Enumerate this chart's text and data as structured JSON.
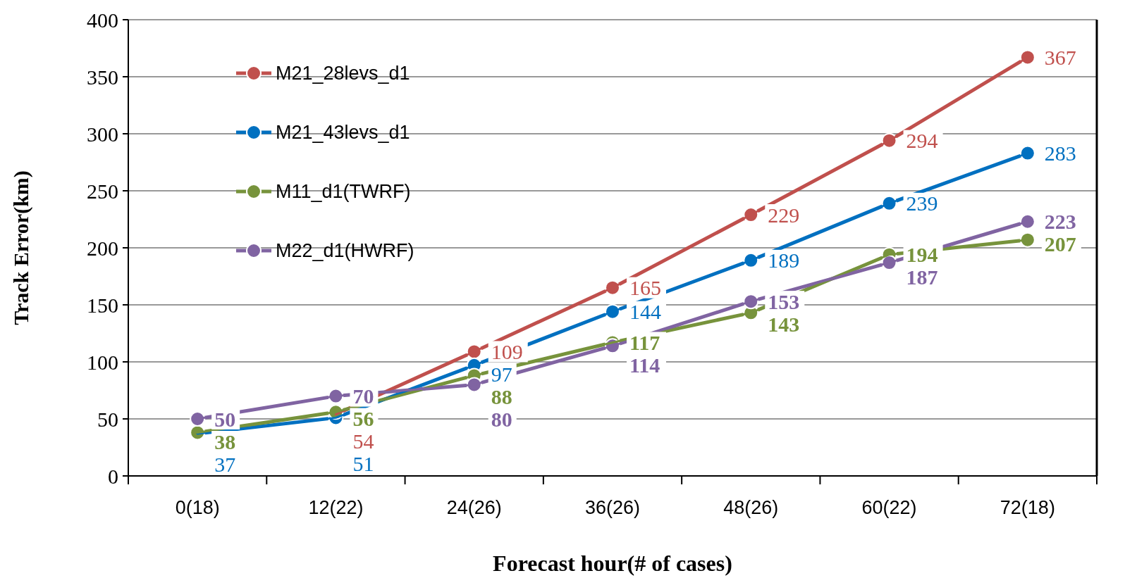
{
  "chart_data": {
    "type": "line",
    "xlabel": "Forecast hour(# of cases)",
    "ylabel": "Track Error(km)",
    "categories": [
      "0(18)",
      "12(22)",
      "24(26)",
      "36(26)",
      "48(26)",
      "60(22)",
      "72(18)"
    ],
    "series": [
      {
        "name": "M21_28levs_d1",
        "color": "#c0504d",
        "values": [
          null,
          54,
          109,
          165,
          229,
          294,
          367
        ]
      },
      {
        "name": "M21_43levs_d1",
        "color": "#0070c0",
        "values": [
          37,
          51,
          97,
          144,
          189,
          239,
          283
        ]
      },
      {
        "name": "M11_d1(TWRF)",
        "color": "#77933c",
        "values": [
          38,
          56,
          88,
          117,
          143,
          194,
          207
        ]
      },
      {
        "name": "M22_d1(HWRF)",
        "color": "#8064a2",
        "values": [
          50,
          70,
          80,
          114,
          153,
          187,
          223
        ]
      }
    ],
    "ylim": [
      0,
      400
    ],
    "yticks": [
      0,
      50,
      100,
      150,
      200,
      250,
      300,
      350,
      400
    ],
    "grid": "y",
    "legend": "top left",
    "marker": "circle",
    "data_labels": true
  }
}
